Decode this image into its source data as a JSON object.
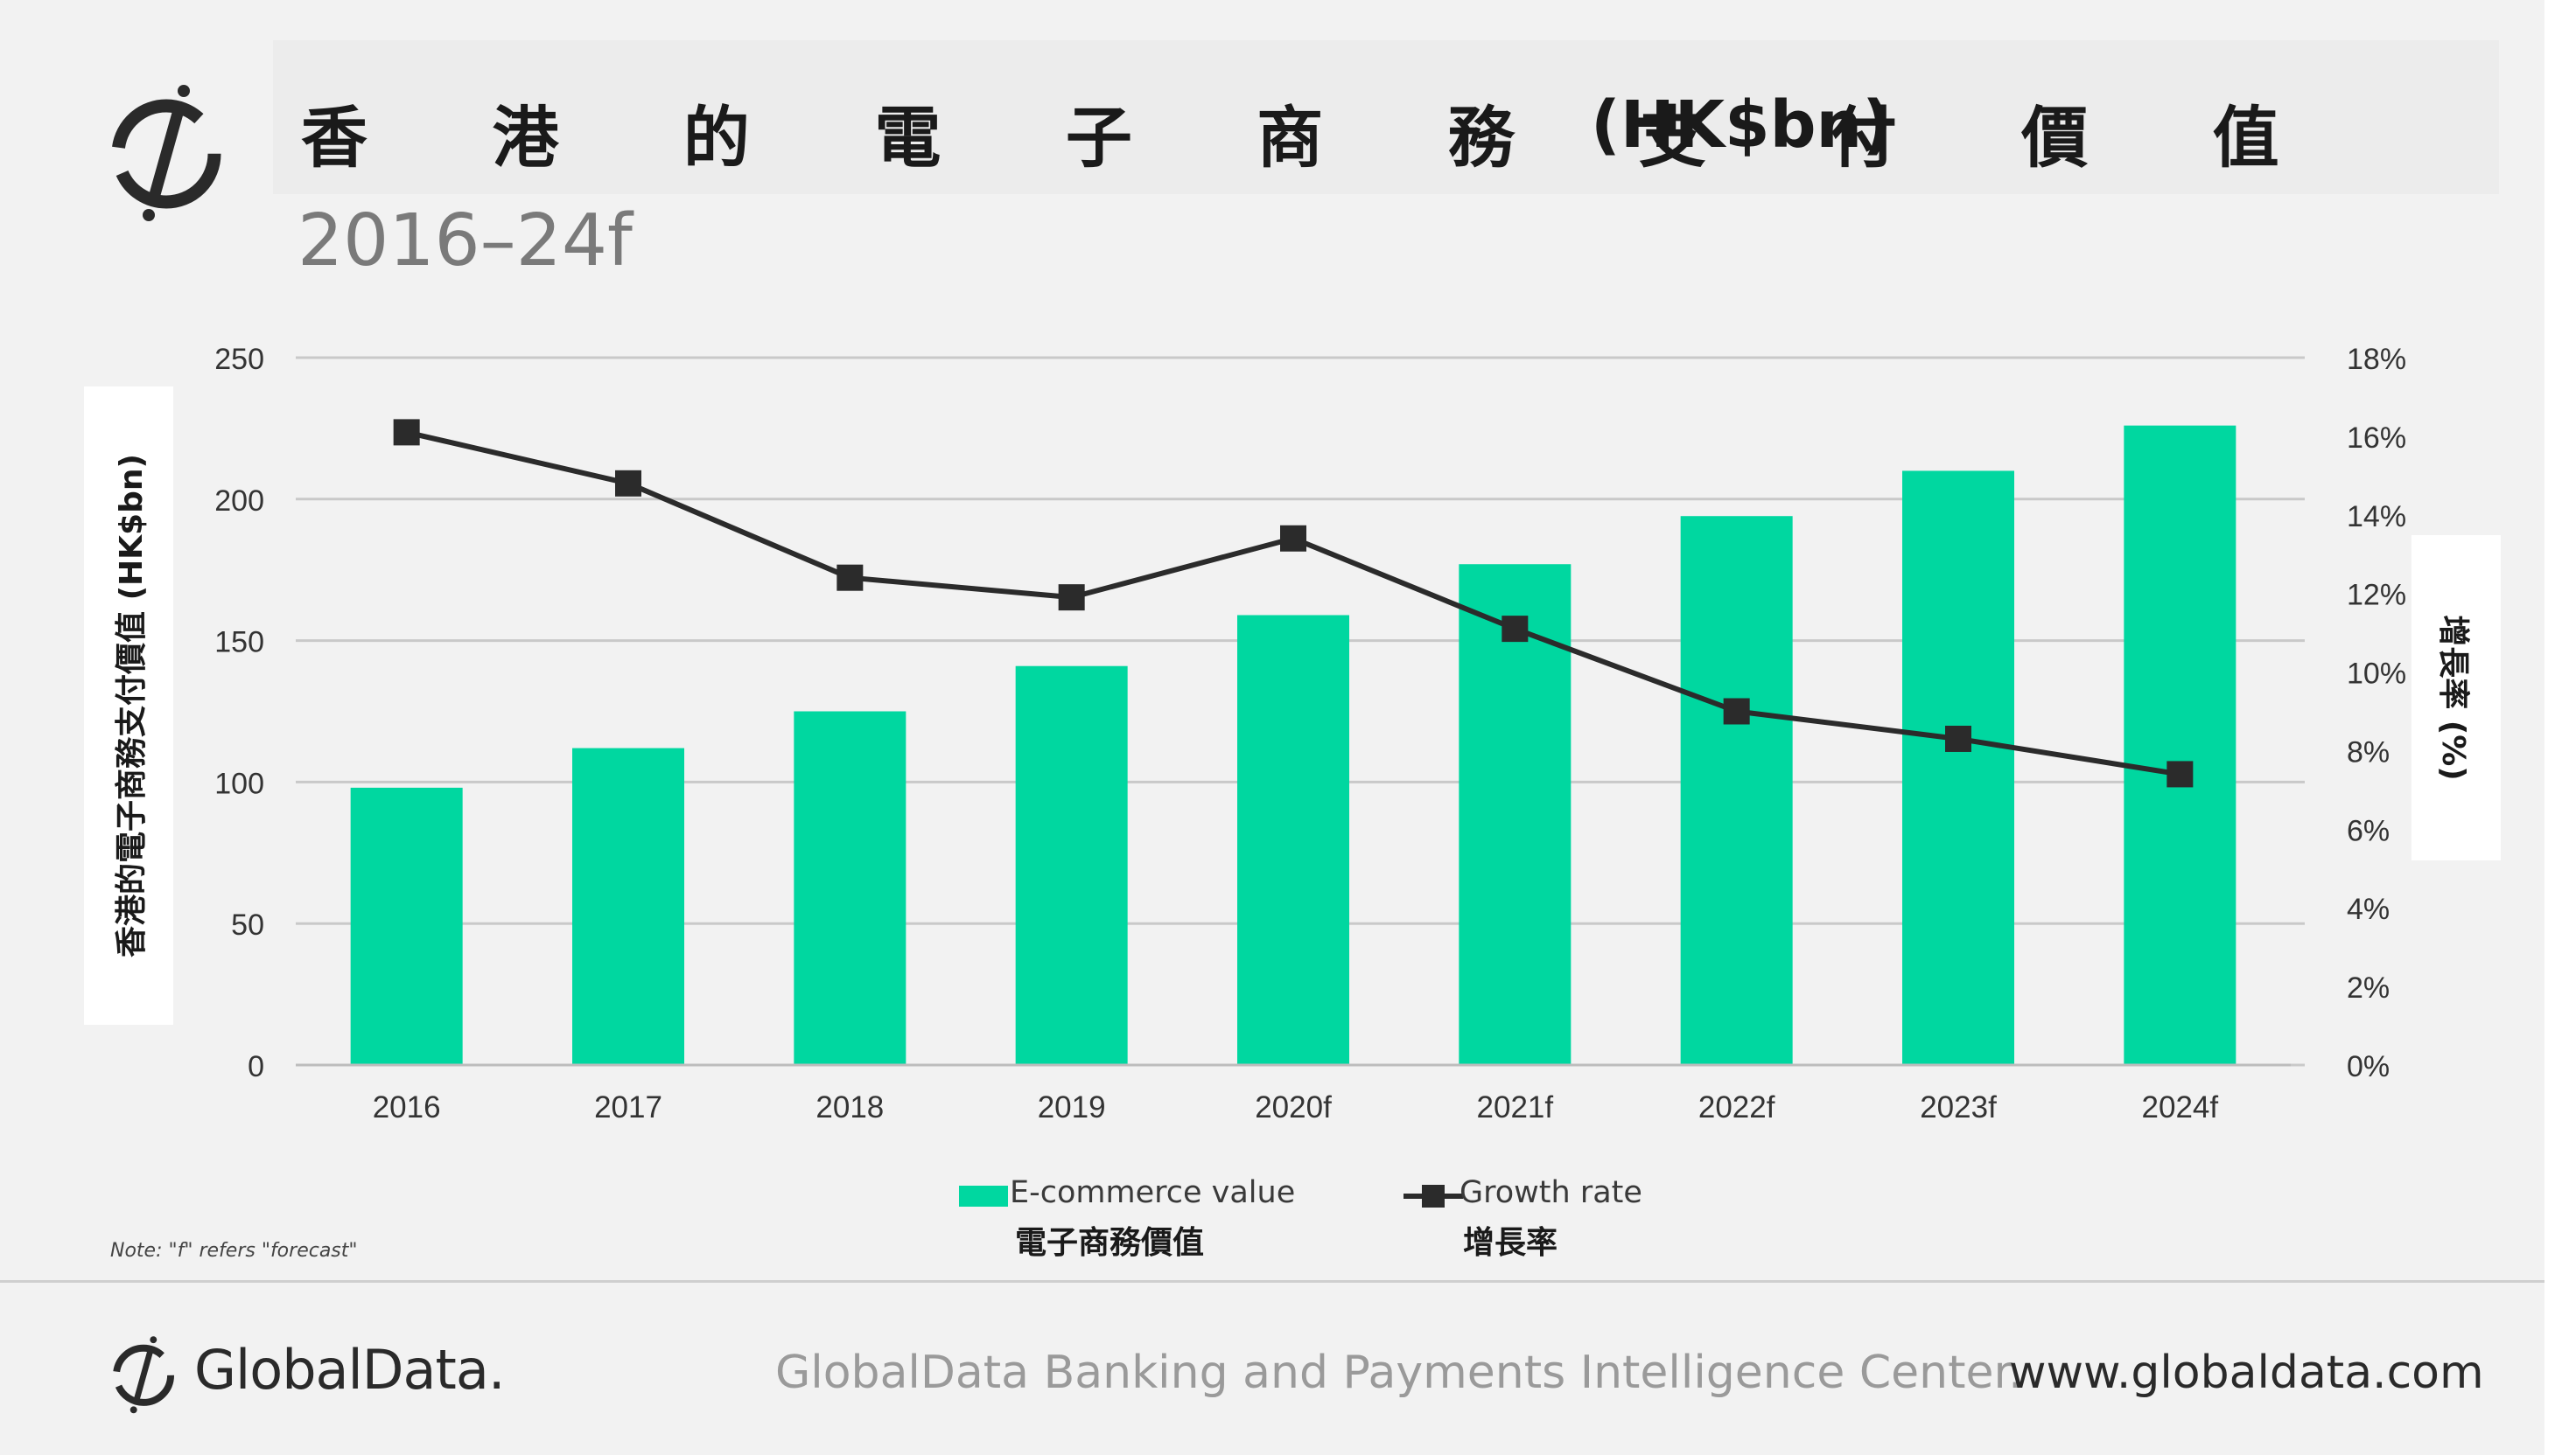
{
  "header": {
    "title": "香 港 的 電 子 商 務 支 付 價 值",
    "title_unit": "(HK$bn)",
    "subtitle": "2016–24f"
  },
  "logo": {
    "icon": "globaldata-logo-icon"
  },
  "chart_data": {
    "type": "bar",
    "categories": [
      "2016",
      "2017",
      "2018",
      "2019",
      "2020f",
      "2021f",
      "2022f",
      "2023f",
      "2024f"
    ],
    "series": [
      {
        "name": "E-commerce value",
        "name_zh": "電子商務價值",
        "type": "bar",
        "axis": "left",
        "values": [
          98,
          112,
          125,
          141,
          159,
          177,
          194,
          210,
          226
        ],
        "color": "#00d7a0"
      },
      {
        "name": "Growth rate",
        "name_zh": "增長率",
        "type": "line",
        "axis": "right",
        "values": [
          16.1,
          14.8,
          12.4,
          11.9,
          13.4,
          11.1,
          9.0,
          8.3,
          7.4
        ],
        "color": "#2b2b2b"
      }
    ],
    "ylabel": "香港的電子商務支付價值 (HK$bn)",
    "y2label": "增長率 (%)",
    "ylim": [
      0,
      250
    ],
    "y2lim": [
      0,
      18
    ],
    "yticks": [
      0,
      50,
      100,
      150,
      200,
      250
    ],
    "y2ticks": [
      "0%",
      "2%",
      "4%",
      "6%",
      "8%",
      "10%",
      "12%",
      "14%",
      "16%",
      "18%"
    ],
    "grid": true,
    "legend": "bottom-center"
  },
  "note": "Note: \"f\" refers \"forecast\"",
  "footer": {
    "brand": "GlobalData.",
    "center_text": "GlobalData Banking and Payments Intelligence Center.",
    "url": "www.globaldata.com"
  }
}
